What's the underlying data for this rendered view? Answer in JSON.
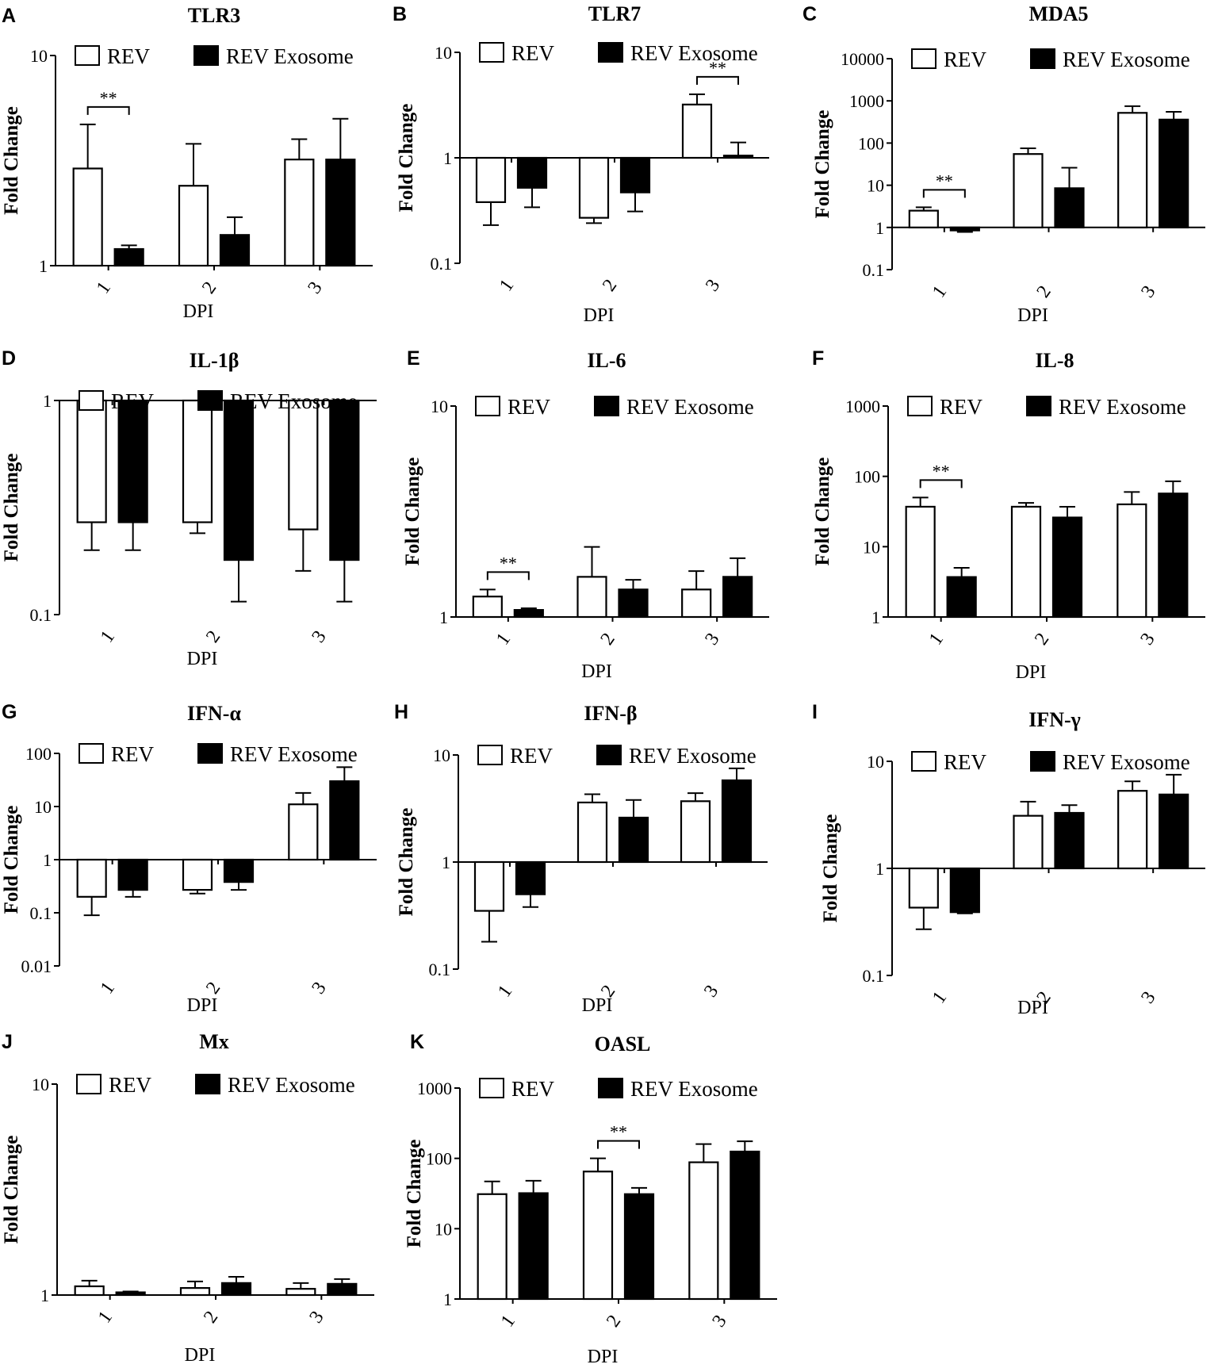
{
  "legend": {
    "series1": "REV",
    "series2": "REV Exosome"
  },
  "colors": {
    "series1_fill": "#ffffff",
    "series2_fill": "#000000",
    "stroke": "#000000"
  },
  "chart_data": [
    {
      "letter": "A",
      "type": "bar",
      "title": "TLR3",
      "scale": "log",
      "ylim": [
        1,
        10
      ],
      "ticks": [
        "1",
        "10"
      ],
      "xlabel": "DPI",
      "ylabel": "Fold Change",
      "categories": [
        "1",
        "2",
        "3"
      ],
      "series": [
        {
          "name": "REV",
          "values": [
            2.9,
            2.4,
            3.2
          ],
          "errors": [
            4.7,
            3.8,
            4.0
          ]
        },
        {
          "name": "REV Exosome",
          "values": [
            1.2,
            1.4,
            3.2
          ],
          "errors": [
            1.25,
            1.7,
            5.0
          ]
        }
      ],
      "significance": [
        {
          "category": "1",
          "label": "**"
        }
      ]
    },
    {
      "letter": "B",
      "type": "bar",
      "title": "TLR7",
      "scale": "log",
      "ylim": [
        0.1,
        10
      ],
      "baseline": 1,
      "ticks": [
        "0.1",
        "1",
        "10"
      ],
      "xlabel": "DPI",
      "ylabel": "Fold Change",
      "categories": [
        "1",
        "2",
        "3"
      ],
      "series": [
        {
          "name": "REV",
          "values": [
            0.38,
            0.27,
            3.2
          ],
          "errors": [
            0.23,
            0.24,
            4.0
          ]
        },
        {
          "name": "REV Exosome",
          "values": [
            0.52,
            0.47,
            1.05
          ],
          "errors": [
            0.34,
            0.31,
            1.4
          ]
        }
      ],
      "significance": [
        {
          "category": "3",
          "label": "**"
        }
      ]
    },
    {
      "letter": "C",
      "type": "bar",
      "title": "MDA5",
      "scale": "log",
      "ylim": [
        0.1,
        10000
      ],
      "baseline": 1,
      "ticks": [
        "0.1",
        "1",
        "10",
        "100",
        "1000",
        "10000"
      ],
      "xlabel": "DPI",
      "ylabel": "Fold Change",
      "categories": [
        "1",
        "2",
        "3"
      ],
      "series": [
        {
          "name": "REV",
          "values": [
            2.5,
            55,
            520
          ],
          "errors": [
            3.0,
            75,
            750
          ]
        },
        {
          "name": "REV Exosome",
          "values": [
            0.85,
            8.5,
            360
          ],
          "errors": [
            0.78,
            26,
            550
          ]
        }
      ],
      "significance": [
        {
          "category": "1",
          "label": "**"
        }
      ]
    },
    {
      "letter": "D",
      "type": "bar",
      "title": "IL-1β",
      "scale": "log",
      "ylim": [
        0.1,
        1
      ],
      "baseline": 1,
      "ticks": [
        "0.1",
        "1"
      ],
      "xlabel": "DPI",
      "ylabel": "Fold Change",
      "categories": [
        "1",
        "2",
        "3"
      ],
      "series": [
        {
          "name": "REV",
          "values": [
            0.27,
            0.27,
            0.25
          ],
          "errors": [
            0.2,
            0.24,
            0.16
          ]
        },
        {
          "name": "REV Exosome",
          "values": [
            0.27,
            0.18,
            0.18
          ],
          "errors": [
            0.2,
            0.115,
            0.115
          ]
        }
      ],
      "significance": []
    },
    {
      "letter": "E",
      "type": "bar",
      "title": "IL-6",
      "scale": "log",
      "ylim": [
        1,
        10
      ],
      "ticks": [
        "1",
        "10"
      ],
      "xlabel": "DPI",
      "ylabel": "Fold Change",
      "categories": [
        "1",
        "2",
        "3"
      ],
      "series": [
        {
          "name": "REV",
          "values": [
            1.25,
            1.55,
            1.35
          ],
          "errors": [
            1.35,
            2.15,
            1.65
          ]
        },
        {
          "name": "REV Exosome",
          "values": [
            1.08,
            1.35,
            1.55
          ],
          "errors": [
            1.1,
            1.5,
            1.9
          ]
        }
      ],
      "significance": [
        {
          "category": "1",
          "label": "**"
        }
      ]
    },
    {
      "letter": "F",
      "type": "bar",
      "title": "IL-8",
      "scale": "log",
      "ylim": [
        1,
        1000
      ],
      "ticks": [
        "1",
        "10",
        "100",
        "1000"
      ],
      "xlabel": "DPI",
      "ylabel": "Fold Change",
      "categories": [
        "1",
        "2",
        "3"
      ],
      "series": [
        {
          "name": "REV",
          "values": [
            37,
            37,
            40
          ],
          "errors": [
            50,
            42,
            60
          ]
        },
        {
          "name": "REV Exosome",
          "values": [
            3.7,
            26,
            57
          ],
          "errors": [
            5.0,
            37,
            85
          ]
        }
      ],
      "significance": [
        {
          "category": "1",
          "label": "**"
        }
      ]
    },
    {
      "letter": "G",
      "type": "bar",
      "title": "IFN-α",
      "scale": "log",
      "ylim": [
        0.01,
        100
      ],
      "baseline": 1,
      "ticks": [
        "0.01",
        "0.1",
        "1",
        "10",
        "100"
      ],
      "xlabel": "DPI",
      "ylabel": "Fold Change",
      "categories": [
        "1",
        "2",
        "3"
      ],
      "series": [
        {
          "name": "REV",
          "values": [
            0.2,
            0.27,
            11
          ],
          "errors": [
            0.09,
            0.23,
            18
          ]
        },
        {
          "name": "REV Exosome",
          "values": [
            0.27,
            0.38,
            30
          ],
          "errors": [
            0.2,
            0.27,
            55
          ]
        }
      ],
      "significance": []
    },
    {
      "letter": "H",
      "type": "bar",
      "title": "IFN-β",
      "scale": "log",
      "ylim": [
        0.1,
        10
      ],
      "baseline": 1,
      "ticks": [
        "0.1",
        "1",
        "10"
      ],
      "xlabel": "DPI",
      "ylabel": "Fold Change",
      "categories": [
        "1",
        "2",
        "3"
      ],
      "series": [
        {
          "name": "REV",
          "values": [
            0.35,
            3.6,
            3.7
          ],
          "errors": [
            0.18,
            4.3,
            4.4
          ]
        },
        {
          "name": "REV Exosome",
          "values": [
            0.5,
            2.6,
            5.8
          ],
          "errors": [
            0.38,
            3.8,
            7.5
          ]
        }
      ],
      "significance": []
    },
    {
      "letter": "I",
      "type": "bar",
      "title": "IFN-γ",
      "scale": "log",
      "ylim": [
        0.1,
        10
      ],
      "baseline": 1,
      "ticks": [
        "0.1",
        "1",
        "10"
      ],
      "xlabel": "DPI",
      "ylabel": "Fold Change",
      "categories": [
        "1",
        "2",
        "3"
      ],
      "series": [
        {
          "name": "REV",
          "values": [
            0.43,
            3.1,
            5.3
          ],
          "errors": [
            0.27,
            4.2,
            6.5
          ]
        },
        {
          "name": "REV Exosome",
          "values": [
            0.39,
            3.3,
            4.9
          ],
          "errors": [
            0.38,
            3.9,
            7.5
          ]
        }
      ],
      "significance": []
    },
    {
      "letter": "J",
      "type": "bar",
      "title": "Mx",
      "scale": "log",
      "ylim": [
        1,
        10
      ],
      "ticks": [
        "1",
        "10"
      ],
      "xlabel": "DPI",
      "ylabel": "Fold Change",
      "categories": [
        "1",
        "2",
        "3"
      ],
      "series": [
        {
          "name": "REV",
          "values": [
            1.1,
            1.08,
            1.07
          ],
          "errors": [
            1.17,
            1.16,
            1.14
          ]
        },
        {
          "name": "REV Exosome",
          "values": [
            1.03,
            1.14,
            1.13
          ],
          "errors": [
            1.04,
            1.22,
            1.19
          ]
        }
      ],
      "significance": []
    },
    {
      "letter": "K",
      "type": "bar",
      "title": "OASL",
      "scale": "log",
      "ylim": [
        1,
        1000
      ],
      "ticks": [
        "1",
        "10",
        "100",
        "1000"
      ],
      "xlabel": "DPI",
      "ylabel": "Fold Change",
      "categories": [
        "1",
        "2",
        "3"
      ],
      "series": [
        {
          "name": "REV",
          "values": [
            31,
            65,
            88
          ],
          "errors": [
            47,
            100,
            160
          ]
        },
        {
          "name": "REV Exosome",
          "values": [
            32,
            31,
            125
          ],
          "errors": [
            48,
            38,
            175
          ]
        }
      ],
      "significance": [
        {
          "category": "2",
          "label": "**"
        }
      ]
    }
  ]
}
